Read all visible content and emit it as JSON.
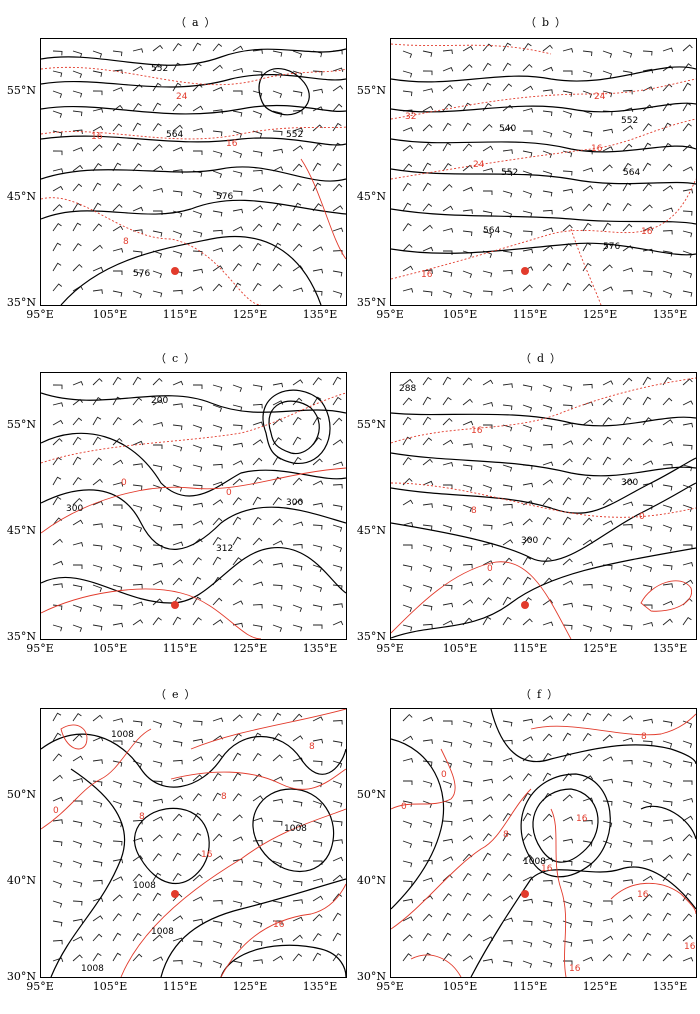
{
  "panels": [
    {
      "label": "（a）",
      "y_ticks": [
        "55°N",
        "45°N",
        "35°N"
      ],
      "x_ticks": [
        "95°E",
        "105°E",
        "115°E",
        "125°E",
        "135°E"
      ],
      "black_labels": [
        "552",
        "564",
        "552",
        "576",
        "576"
      ],
      "red_labels": [
        "24",
        "16",
        "16",
        "8"
      ]
    },
    {
      "label": "（b）",
      "y_ticks": [
        "55°N",
        "45°N",
        "35°N"
      ],
      "x_ticks": [
        "95°E",
        "105°E",
        "115°E",
        "125°E",
        "135°E"
      ],
      "black_labels": [
        "540",
        "552",
        "552",
        "564",
        "564",
        "576"
      ],
      "red_labels": [
        "24",
        "32",
        "16",
        "24",
        "16",
        "16"
      ]
    },
    {
      "label": "（c）",
      "y_ticks": [
        "55°N",
        "45°N",
        "35°N"
      ],
      "x_ticks": [
        "95°E",
        "105°E",
        "115°E",
        "125°E",
        "135°E"
      ],
      "black_labels": [
        "300",
        "300",
        "312"
      ],
      "red_labels": [
        "0",
        "0"
      ]
    },
    {
      "label": "（d）",
      "y_ticks": [
        "55°N",
        "45°N",
        "35°N"
      ],
      "x_ticks": [
        "95°E",
        "105°E",
        "115°E",
        "125°E",
        "135°E"
      ],
      "black_labels": [
        "288",
        "300",
        "300"
      ],
      "red_labels": [
        "16",
        "8",
        "0",
        "0"
      ]
    },
    {
      "label": "（e）",
      "y_ticks": [
        "50°N",
        "40°N",
        "30°N"
      ],
      "x_ticks": [
        "95°E",
        "105°E",
        "115°E",
        "125°E",
        "135°E"
      ],
      "black_labels": [
        "1008",
        "1008",
        "1008",
        "1008",
        "1008"
      ],
      "red_labels": [
        "0",
        "8",
        "8",
        "16",
        "16",
        "8"
      ]
    },
    {
      "label": "（f）",
      "y_ticks": [
        "50°N",
        "40°N",
        "30°N"
      ],
      "x_ticks": [
        "95°E",
        "105°E",
        "115°E",
        "125°E",
        "135°E"
      ],
      "black_labels": [
        "1008"
      ],
      "red_labels": [
        "0",
        "0",
        "8",
        "16",
        "16",
        "16",
        "16",
        "8",
        "16"
      ]
    }
  ],
  "colors": {
    "geopotential": "#000000",
    "temperature": "#e23b2c",
    "station": "#e23b2c"
  }
}
